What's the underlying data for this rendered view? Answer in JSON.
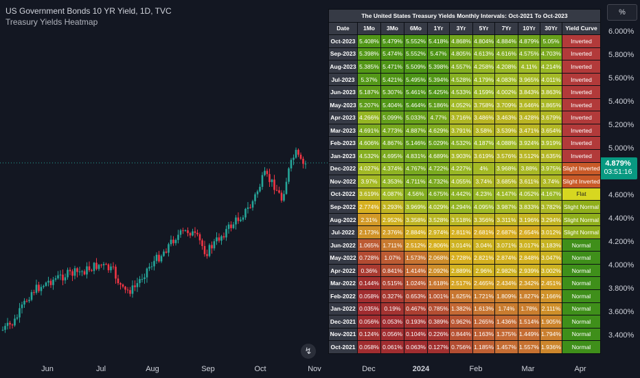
{
  "header": {
    "title": "US Government Bonds 10 YR Yield, 1D, TVC",
    "subtitle": "Treasury Yields Heatmap"
  },
  "scale_button": "%",
  "price": {
    "value": "4.879%",
    "countdown": "03:51:16"
  },
  "y_axis": [
    "6.000%",
    "5.800%",
    "5.600%",
    "5.400%",
    "5.200%",
    "5.000%",
    "4.600%",
    "4.400%",
    "4.200%",
    "4.000%",
    "3.800%",
    "3.600%",
    "3.400%"
  ],
  "x_axis": [
    "Jun",
    "Jul",
    "Aug",
    "Sep",
    "Oct",
    "Nov",
    "Dec",
    "2024",
    "Feb",
    "Mar",
    "Apr"
  ],
  "colors": {
    "up": "#26a69a",
    "down": "#f23645",
    "background": "#131722"
  },
  "table": {
    "title": "The United States Treasury Yields Monthly Intervals: Oct-2021 To Oct-2023",
    "headers": [
      "Date",
      "1Mo",
      "3Mo",
      "6Mo",
      "1Yr",
      "3Yr",
      "5Yr",
      "7Yr",
      "10Yr",
      "30Yr",
      "Yield Curve"
    ],
    "rows": [
      [
        "Oct-2023",
        "5.408%",
        "5.479%",
        "5.552%",
        "5.418%",
        "4.868%",
        "4.804%",
        "4.884%",
        "4.879%",
        "5.05%",
        "Inverted"
      ],
      [
        "Sep-2023",
        "5.398%",
        "5.474%",
        "5.552%",
        "5.47%",
        "4.805%",
        "4.613%",
        "4.616%",
        "4.575%",
        "4.703%",
        "Inverted"
      ],
      [
        "Aug-2023",
        "5.385%",
        "5.471%",
        "5.509%",
        "5.398%",
        "4.557%",
        "4.258%",
        "4.208%",
        "4.11%",
        "4.214%",
        "Inverted"
      ],
      [
        "Jul-2023",
        "5.37%",
        "5.421%",
        "5.495%",
        "5.394%",
        "4.528%",
        "4.179%",
        "4.083%",
        "3.965%",
        "4.011%",
        "Inverted"
      ],
      [
        "Jun-2023",
        "5.187%",
        "5.307%",
        "5.461%",
        "5.425%",
        "4.533%",
        "4.159%",
        "4.002%",
        "3.843%",
        "3.863%",
        "Inverted"
      ],
      [
        "May-2023",
        "5.207%",
        "5.404%",
        "5.464%",
        "5.186%",
        "4.052%",
        "3.758%",
        "3.709%",
        "3.646%",
        "3.865%",
        "Inverted"
      ],
      [
        "Apr-2023",
        "4.266%",
        "5.099%",
        "5.033%",
        "4.77%",
        "3.716%",
        "3.486%",
        "3.463%",
        "3.428%",
        "3.679%",
        "Inverted"
      ],
      [
        "Mar-2023",
        "4.691%",
        "4.773%",
        "4.887%",
        "4.629%",
        "3.791%",
        "3.58%",
        "3.539%",
        "3.471%",
        "3.654%",
        "Inverted"
      ],
      [
        "Feb-2023",
        "4.606%",
        "4.867%",
        "5.146%",
        "5.029%",
        "4.532%",
        "4.187%",
        "4.088%",
        "3.924%",
        "3.919%",
        "Inverted"
      ],
      [
        "Jan-2023",
        "4.532%",
        "4.695%",
        "4.831%",
        "4.689%",
        "3.903%",
        "3.619%",
        "3.576%",
        "3.512%",
        "3.635%",
        "Inverted"
      ],
      [
        "Dec-2022",
        "4.027%",
        "4.374%",
        "4.767%",
        "4.722%",
        "4.227%",
        "4%",
        "3.968%",
        "3.88%",
        "3.975%",
        "Slight Inverted"
      ],
      [
        "Nov-2022",
        "3.97%",
        "4.353%",
        "4.711%",
        "4.732%",
        "4.055%",
        "3.74%",
        "3.685%",
        "3.611%",
        "3.74%",
        "Slight Inverted"
      ],
      [
        "Oct-2022",
        "3.619%",
        "4.087%",
        "4.56%",
        "4.675%",
        "4.442%",
        "4.23%",
        "4.147%",
        "4.052%",
        "4.167%",
        "Flat"
      ],
      [
        "Sep-2022",
        "2.774%",
        "3.293%",
        "3.969%",
        "4.029%",
        "4.294%",
        "4.095%",
        "3.987%",
        "3.833%",
        "3.782%",
        "Slight Normal"
      ],
      [
        "Aug-2022",
        "2.31%",
        "2.952%",
        "3.358%",
        "3.528%",
        "3.518%",
        "3.356%",
        "3.311%",
        "3.196%",
        "3.294%",
        "Slight Normal"
      ],
      [
        "Jul-2022",
        "2.173%",
        "2.376%",
        "2.884%",
        "2.974%",
        "2.811%",
        "2.681%",
        "2.687%",
        "2.654%",
        "3.012%",
        "Slight Normal"
      ],
      [
        "Jun-2022",
        "1.065%",
        "1.711%",
        "2.512%",
        "2.806%",
        "3.014%",
        "3.04%",
        "3.071%",
        "3.017%",
        "3.183%",
        "Normal"
      ],
      [
        "May-2022",
        "0.728%",
        "1.07%",
        "1.573%",
        "2.068%",
        "2.728%",
        "2.821%",
        "2.874%",
        "2.848%",
        "3.047%",
        "Normal"
      ],
      [
        "Apr-2022",
        "0.36%",
        "0.841%",
        "1.414%",
        "2.092%",
        "2.889%",
        "2.96%",
        "2.982%",
        "2.939%",
        "3.002%",
        "Normal"
      ],
      [
        "Mar-2022",
        "0.144%",
        "0.515%",
        "1.024%",
        "1.618%",
        "2.517%",
        "2.465%",
        "2.434%",
        "2.342%",
        "2.451%",
        "Normal"
      ],
      [
        "Feb-2022",
        "0.058%",
        "0.327%",
        "0.653%",
        "1.001%",
        "1.625%",
        "1.721%",
        "1.809%",
        "1.827%",
        "2.166%",
        "Normal"
      ],
      [
        "Jan-2022",
        "0.035%",
        "0.19%",
        "0.467%",
        "0.785%",
        "1.382%",
        "1.613%",
        "1.74%",
        "1.78%",
        "2.111%",
        "Normal"
      ],
      [
        "Dec-2021",
        "0.056%",
        "0.053%",
        "0.193%",
        "0.389%",
        "0.962%",
        "1.265%",
        "1.436%",
        "1.514%",
        "1.905%",
        "Normal"
      ],
      [
        "Nov-2021",
        "0.124%",
        "0.056%",
        "0.104%",
        "0.226%",
        "0.844%",
        "1.163%",
        "1.375%",
        "1.449%",
        "1.794%",
        "Normal"
      ],
      [
        "Oct-2021",
        "0.058%",
        "0.061%",
        "0.063%",
        "0.127%",
        "0.756%",
        "1.185%",
        "1.457%",
        "1.557%",
        "1.936%",
        "Normal"
      ]
    ]
  }
}
